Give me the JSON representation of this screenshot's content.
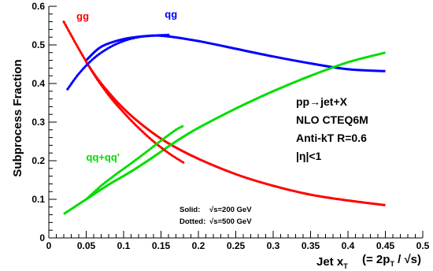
{
  "chart_data": {
    "type": "line",
    "title": "",
    "ylabel": "Subprocess Fraction",
    "xlabel": "Jet x",
    "xlabel_sub": "T",
    "xlabel_def": "(= 2p",
    "xlabel_def_sub": "T",
    "xlabel_def_tail": " / √s)",
    "xlim": [
      0,
      0.5
    ],
    "ylim": [
      0,
      0.6
    ],
    "xticks": [
      "0",
      "0.05",
      "0.1",
      "0.15",
      "0.2",
      "0.25",
      "0.3",
      "0.35",
      "0.4",
      "0.45",
      "0.5"
    ],
    "yticks": [
      "0",
      "0.1",
      "0.2",
      "0.3",
      "0.4",
      "0.5",
      "0.6"
    ],
    "grid": false,
    "colors": {
      "gg": "#ff0000",
      "qg": "#0000ff",
      "qq": "#00dd00"
    },
    "series": [
      {
        "name": "gg",
        "process": "gg",
        "style": "solid",
        "x": [
          0.05,
          0.07,
          0.1,
          0.13,
          0.16,
          0.2,
          0.25,
          0.3,
          0.35,
          0.4,
          0.45
        ],
        "y": [
          0.455,
          0.4,
          0.335,
          0.285,
          0.245,
          0.205,
          0.165,
          0.135,
          0.112,
          0.097,
          0.085
        ]
      },
      {
        "name": "qg",
        "process": "qg",
        "style": "solid",
        "x": [
          0.05,
          0.07,
          0.1,
          0.13,
          0.155,
          0.2,
          0.25,
          0.3,
          0.35,
          0.4,
          0.45
        ],
        "y": [
          0.46,
          0.495,
          0.515,
          0.523,
          0.523,
          0.51,
          0.49,
          0.47,
          0.452,
          0.437,
          0.432
        ]
      },
      {
        "name": "qq+qq'",
        "process": "qq",
        "style": "solid",
        "x": [
          0.02,
          0.05,
          0.08,
          0.11,
          0.14,
          0.17,
          0.2,
          0.25,
          0.3,
          0.35,
          0.4,
          0.45
        ],
        "y": [
          0.062,
          0.1,
          0.138,
          0.172,
          0.21,
          0.25,
          0.285,
          0.335,
          0.38,
          0.42,
          0.455,
          0.48
        ]
      },
      {
        "name": "gg",
        "process": "gg",
        "style": "dotted",
        "x": [
          0.02,
          0.04,
          0.06,
          0.08,
          0.1,
          0.12,
          0.14,
          0.16,
          0.18
        ],
        "y": [
          0.56,
          0.49,
          0.425,
          0.37,
          0.325,
          0.285,
          0.25,
          0.22,
          0.195
        ]
      },
      {
        "name": "qg",
        "process": "qg",
        "style": "dotted",
        "x": [
          0.025,
          0.04,
          0.06,
          0.08,
          0.1,
          0.12,
          0.14,
          0.16
        ],
        "y": [
          0.385,
          0.425,
          0.465,
          0.492,
          0.51,
          0.52,
          0.524,
          0.526
        ]
      },
      {
        "name": "qq+qq'",
        "process": "qq",
        "style": "dotted",
        "x": [
          0.05,
          0.07,
          0.09,
          0.11,
          0.13,
          0.15,
          0.17,
          0.18
        ],
        "y": [
          0.1,
          0.135,
          0.165,
          0.193,
          0.222,
          0.252,
          0.28,
          0.29
        ]
      }
    ],
    "labels": [
      {
        "text": "gg",
        "process": "gg",
        "x": 0.037,
        "y": 0.565
      },
      {
        "text": "qg",
        "process": "qg",
        "x": 0.155,
        "y": 0.57
      },
      {
        "text": "qq+qq'",
        "process": "qq",
        "x": 0.05,
        "y": 0.2
      }
    ],
    "annotations": [
      "pp→jet+X",
      "NLO CTEQ6M",
      "Anti-kT R=0.6",
      "|η|<1"
    ],
    "notes": [
      {
        "key": "Solid:",
        "value": "√s=200 GeV"
      },
      {
        "key": "Dotted:",
        "value": "√s=500 GeV"
      }
    ]
  }
}
